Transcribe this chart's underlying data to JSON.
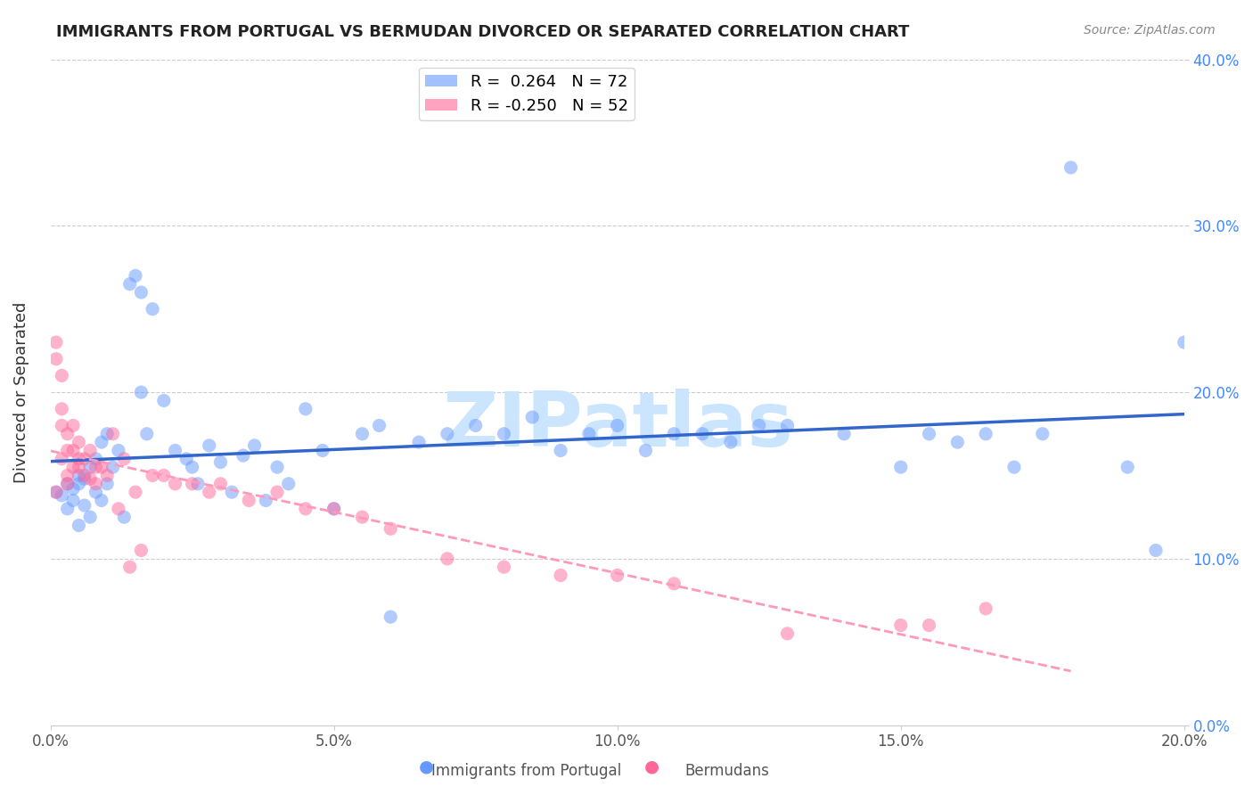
{
  "title": "IMMIGRANTS FROM PORTUGAL VS BERMUDAN DIVORCED OR SEPARATED CORRELATION CHART",
  "source": "Source: ZipAtlas.com",
  "ylabel": "Divorced or Separated",
  "xlabel_blue": "Immigrants from Portugal",
  "xlabel_pink": "Bermudans",
  "xlim": [
    0.0,
    0.2
  ],
  "ylim": [
    0.0,
    0.4
  ],
  "xticks": [
    0.0,
    0.05,
    0.1,
    0.15,
    0.2
  ],
  "yticks": [
    0.0,
    0.1,
    0.2,
    0.3,
    0.4
  ],
  "xtick_labels": [
    "0.0%",
    "5.0%",
    "10.0%",
    "15.0%",
    "20.0%"
  ],
  "ytick_labels": [
    "0.0%",
    "10.0%",
    "20.0%",
    "30.0%",
    "40.0%"
  ],
  "blue_R": 0.264,
  "blue_N": 72,
  "pink_R": -0.25,
  "pink_N": 52,
  "blue_color": "#6699FF",
  "pink_color": "#FF6699",
  "blue_trend_color": "#3366CC",
  "pink_trend_color": "#FF99BB",
  "watermark": "ZIPatlas",
  "watermark_color": "#CCE5FF",
  "legend_R_blue_text": "R =  0.264   N = 72",
  "legend_R_pink_text": "R = -0.250   N = 52",
  "blue_scatter_x": [
    0.001,
    0.002,
    0.003,
    0.003,
    0.004,
    0.004,
    0.005,
    0.005,
    0.005,
    0.006,
    0.006,
    0.007,
    0.007,
    0.008,
    0.008,
    0.009,
    0.009,
    0.01,
    0.01,
    0.011,
    0.012,
    0.013,
    0.014,
    0.015,
    0.016,
    0.016,
    0.017,
    0.018,
    0.02,
    0.022,
    0.024,
    0.025,
    0.026,
    0.028,
    0.03,
    0.032,
    0.034,
    0.036,
    0.038,
    0.04,
    0.042,
    0.045,
    0.048,
    0.05,
    0.055,
    0.058,
    0.06,
    0.065,
    0.07,
    0.075,
    0.08,
    0.085,
    0.09,
    0.095,
    0.1,
    0.105,
    0.11,
    0.115,
    0.12,
    0.125,
    0.13,
    0.14,
    0.15,
    0.155,
    0.16,
    0.165,
    0.17,
    0.175,
    0.18,
    0.19,
    0.195,
    0.2
  ],
  "blue_scatter_y": [
    0.14,
    0.138,
    0.145,
    0.13,
    0.142,
    0.135,
    0.15,
    0.145,
    0.12,
    0.148,
    0.132,
    0.155,
    0.125,
    0.16,
    0.14,
    0.17,
    0.135,
    0.175,
    0.145,
    0.155,
    0.165,
    0.125,
    0.265,
    0.27,
    0.2,
    0.26,
    0.175,
    0.25,
    0.195,
    0.165,
    0.16,
    0.155,
    0.145,
    0.168,
    0.158,
    0.14,
    0.162,
    0.168,
    0.135,
    0.155,
    0.145,
    0.19,
    0.165,
    0.13,
    0.175,
    0.18,
    0.065,
    0.17,
    0.175,
    0.18,
    0.175,
    0.185,
    0.165,
    0.175,
    0.18,
    0.165,
    0.175,
    0.175,
    0.17,
    0.18,
    0.18,
    0.175,
    0.155,
    0.175,
    0.17,
    0.175,
    0.155,
    0.175,
    0.335,
    0.155,
    0.105,
    0.23
  ],
  "pink_scatter_x": [
    0.001,
    0.001,
    0.001,
    0.002,
    0.002,
    0.002,
    0.002,
    0.003,
    0.003,
    0.003,
    0.003,
    0.004,
    0.004,
    0.004,
    0.005,
    0.005,
    0.005,
    0.006,
    0.006,
    0.007,
    0.007,
    0.008,
    0.008,
    0.009,
    0.01,
    0.011,
    0.012,
    0.013,
    0.014,
    0.015,
    0.016,
    0.018,
    0.02,
    0.022,
    0.025,
    0.028,
    0.03,
    0.035,
    0.04,
    0.045,
    0.05,
    0.055,
    0.06,
    0.07,
    0.08,
    0.09,
    0.1,
    0.11,
    0.13,
    0.15,
    0.155,
    0.165
  ],
  "pink_scatter_y": [
    0.14,
    0.22,
    0.23,
    0.19,
    0.21,
    0.18,
    0.16,
    0.15,
    0.165,
    0.175,
    0.145,
    0.165,
    0.155,
    0.18,
    0.17,
    0.16,
    0.155,
    0.16,
    0.15,
    0.165,
    0.148,
    0.155,
    0.145,
    0.155,
    0.15,
    0.175,
    0.13,
    0.16,
    0.095,
    0.14,
    0.105,
    0.15,
    0.15,
    0.145,
    0.145,
    0.14,
    0.145,
    0.135,
    0.14,
    0.13,
    0.13,
    0.125,
    0.118,
    0.1,
    0.095,
    0.09,
    0.09,
    0.085,
    0.055,
    0.06,
    0.06,
    0.07
  ],
  "figsize": [
    14.06,
    8.92
  ],
  "dpi": 100
}
